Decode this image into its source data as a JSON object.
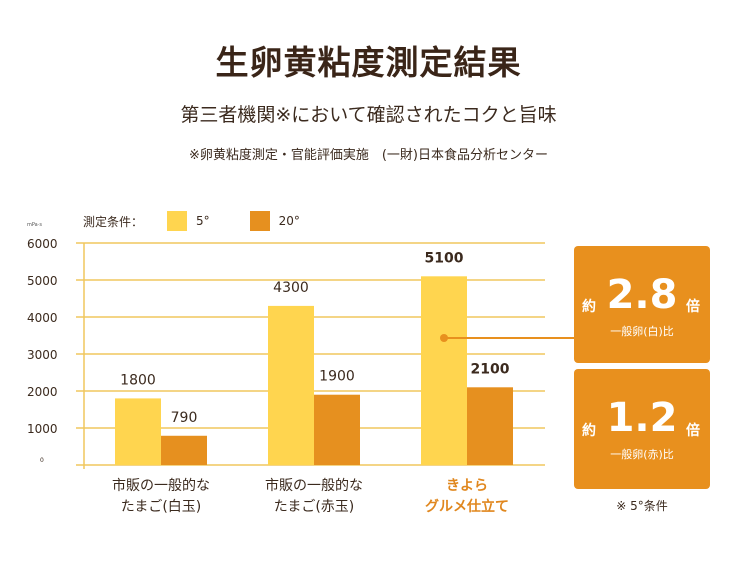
{
  "title": "生卵黄粘度測定結果",
  "subtitle": "第三者機関※において確認されたコクと旨味",
  "note": "※卵黄粘度測定・官能評価実施　(一財)日本食品分析センター",
  "legend": {
    "label": "測定条件：",
    "items": [
      {
        "name": "5°",
        "color": "#ffd54f"
      },
      {
        "name": "20°",
        "color": "#e6901f"
      }
    ]
  },
  "small_unit_text": "mPa·s",
  "chart_data": {
    "type": "bar",
    "categories": [
      [
        "市販の一般的な",
        "たまご(白玉)"
      ],
      [
        "市販の一般的な",
        "たまご(赤玉)"
      ],
      [
        "きよら",
        "グルメ仕立て"
      ]
    ],
    "highlight_category": 2,
    "series": [
      {
        "name": "5°",
        "color": "#ffd54f",
        "values": [
          1800,
          4300,
          5100
        ]
      },
      {
        "name": "20°",
        "color": "#e6901f",
        "values": [
          790,
          1900,
          2100
        ]
      }
    ],
    "data_labels": [
      [
        "1800",
        "4300",
        "5100"
      ],
      [
        "790",
        "1900",
        "2100"
      ]
    ],
    "yticks": [
      "0",
      "1000",
      "2000",
      "3000",
      "4000",
      "5000",
      "6000"
    ],
    "ylim": [
      0,
      6000
    ],
    "grid": true,
    "grid_color": "#f0c75e"
  },
  "callouts": [
    {
      "prefix": "約",
      "value": "2.8",
      "suffix": "倍",
      "compare": "一般卵(白)比"
    },
    {
      "prefix": "約",
      "value": "1.2",
      "suffix": "倍",
      "compare": "一般卵(赤)比"
    }
  ],
  "condition_note": "※ 5°条件",
  "accent_color": "#e8901e"
}
